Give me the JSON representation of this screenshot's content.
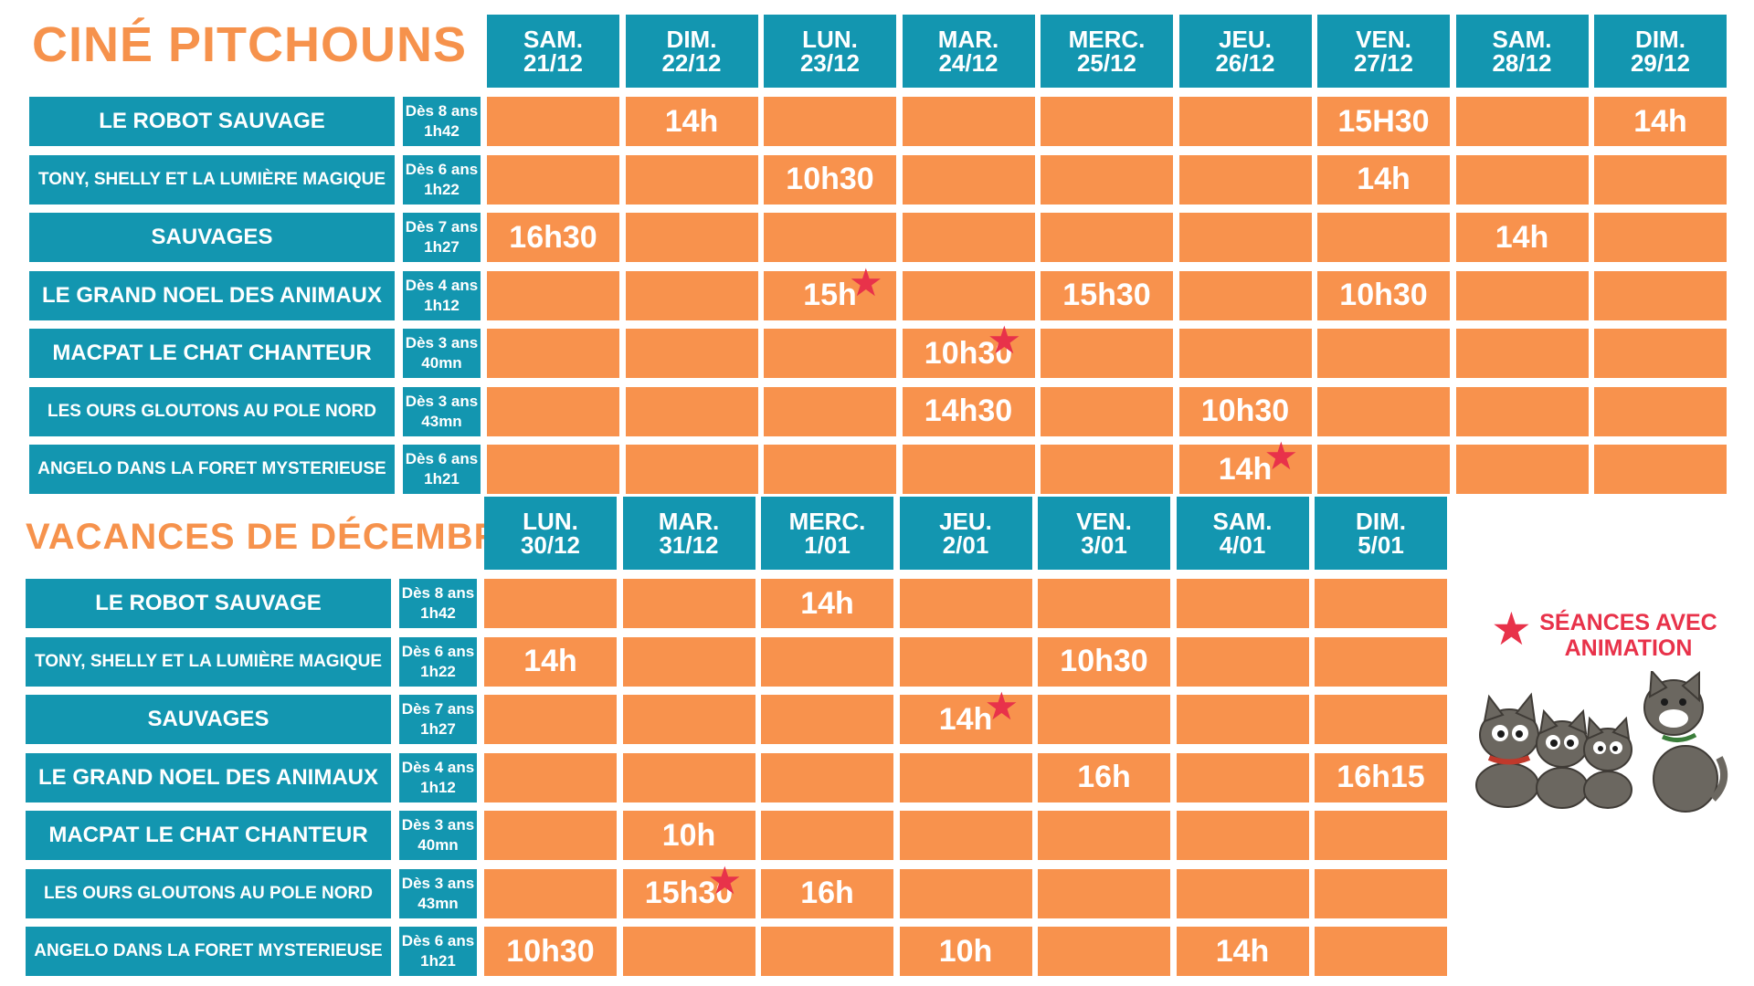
{
  "colors": {
    "orange": "#f8924d",
    "teal": "#1396b0",
    "title_orange": "#f6924c",
    "star_red": "#e8324a"
  },
  "section1": {
    "title": "CINÉ PITCHOUNS",
    "days": [
      {
        "dow": "SAM.",
        "date": "21/12"
      },
      {
        "dow": "DIM.",
        "date": "22/12"
      },
      {
        "dow": "LUN.",
        "date": "23/12"
      },
      {
        "dow": "MAR.",
        "date": "24/12"
      },
      {
        "dow": "MERC.",
        "date": "25/12"
      },
      {
        "dow": "JEU.",
        "date": "26/12"
      },
      {
        "dow": "VEN.",
        "date": "27/12"
      },
      {
        "dow": "SAM.",
        "date": "28/12"
      },
      {
        "dow": "DIM.",
        "date": "29/12"
      }
    ],
    "films": [
      {
        "name": "LE ROBOT SAUVAGE",
        "age": "Dès 8 ans",
        "duration": "1h42",
        "times": [
          "",
          "14h",
          "",
          "",
          "",
          "",
          "15H30",
          "",
          "14h"
        ],
        "stars": [
          false,
          false,
          false,
          false,
          false,
          false,
          false,
          false,
          false
        ]
      },
      {
        "name": "TONY, SHELLY ET LA LUMIÈRE MAGIQUE",
        "age": "Dès 6 ans",
        "duration": "1h22",
        "times": [
          "",
          "",
          "10h30",
          "",
          "",
          "",
          "14h",
          "",
          ""
        ],
        "stars": [
          false,
          false,
          false,
          false,
          false,
          false,
          false,
          false,
          false
        ]
      },
      {
        "name": "SAUVAGES",
        "age": "Dès 7 ans",
        "duration": "1h27",
        "times": [
          "16h30",
          "",
          "",
          "",
          "",
          "",
          "",
          "14h",
          ""
        ],
        "stars": [
          false,
          false,
          false,
          false,
          false,
          false,
          false,
          false,
          false
        ]
      },
      {
        "name": "LE GRAND NOEL DES ANIMAUX",
        "age": "Dès 4 ans",
        "duration": "1h12",
        "times": [
          "",
          "",
          "15h",
          "",
          "15h30",
          "",
          "10h30",
          "",
          ""
        ],
        "stars": [
          false,
          false,
          true,
          false,
          false,
          false,
          false,
          false,
          false
        ]
      },
      {
        "name": "MACPAT LE CHAT CHANTEUR",
        "age": "Dès 3 ans",
        "duration": "40mn",
        "times": [
          "",
          "",
          "",
          "10h30",
          "",
          "",
          "",
          "",
          ""
        ],
        "stars": [
          false,
          false,
          false,
          true,
          false,
          false,
          false,
          false,
          false
        ]
      },
      {
        "name": "LES OURS GLOUTONS AU POLE NORD",
        "age": "Dès 3 ans",
        "duration": "43mn",
        "times": [
          "",
          "",
          "",
          "14h30",
          "",
          "10h30",
          "",
          "",
          ""
        ],
        "stars": [
          false,
          false,
          false,
          false,
          false,
          false,
          false,
          false,
          false
        ]
      },
      {
        "name": "ANGELO DANS LA FORET MYSTERIEUSE",
        "age": "Dès 6 ans",
        "duration": "1h21",
        "times": [
          "",
          "",
          "",
          "",
          "",
          "14h",
          "",
          "",
          ""
        ],
        "stars": [
          false,
          false,
          false,
          false,
          false,
          true,
          false,
          false,
          false
        ]
      }
    ]
  },
  "section2": {
    "title": "VACANCES DE DÉCEMBRE",
    "days": [
      {
        "dow": "LUN.",
        "date": "30/12"
      },
      {
        "dow": "MAR.",
        "date": "31/12"
      },
      {
        "dow": "MERC.",
        "date": "1/01"
      },
      {
        "dow": "JEU.",
        "date": "2/01"
      },
      {
        "dow": "VEN.",
        "date": "3/01"
      },
      {
        "dow": "SAM.",
        "date": "4/01"
      },
      {
        "dow": "DIM.",
        "date": "5/01"
      }
    ],
    "films": [
      {
        "name": "LE ROBOT SAUVAGE",
        "age": "Dès 8 ans",
        "duration": "1h42",
        "times": [
          "",
          "",
          "14h",
          "",
          "",
          "",
          ""
        ],
        "stars": [
          false,
          false,
          false,
          false,
          false,
          false,
          false
        ]
      },
      {
        "name": "TONY, SHELLY ET LA LUMIÈRE MAGIQUE",
        "age": "Dès 6 ans",
        "duration": "1h22",
        "times": [
          "14h",
          "",
          "",
          "",
          "10h30",
          "",
          ""
        ],
        "stars": [
          false,
          false,
          false,
          false,
          false,
          false,
          false
        ]
      },
      {
        "name": "SAUVAGES",
        "age": "Dès 7 ans",
        "duration": "1h27",
        "times": [
          "",
          "",
          "",
          "14h",
          "",
          "",
          ""
        ],
        "stars": [
          false,
          false,
          false,
          true,
          false,
          false,
          false
        ]
      },
      {
        "name": "LE GRAND NOEL DES ANIMAUX",
        "age": "Dès 4 ans",
        "duration": "1h12",
        "times": [
          "",
          "",
          "",
          "",
          "16h",
          "",
          "16h15"
        ],
        "stars": [
          false,
          false,
          false,
          false,
          false,
          false,
          false
        ]
      },
      {
        "name": "MACPAT LE CHAT CHANTEUR",
        "age": "Dès 3 ans",
        "duration": "40mn",
        "times": [
          "",
          "10h",
          "",
          "",
          "",
          "",
          ""
        ],
        "stars": [
          false,
          false,
          false,
          false,
          false,
          false,
          false
        ]
      },
      {
        "name": "LES OURS GLOUTONS AU POLE NORD",
        "age": "Dès 3 ans",
        "duration": "43mn",
        "times": [
          "",
          "15h30",
          "16h",
          "",
          "",
          "",
          ""
        ],
        "stars": [
          false,
          true,
          false,
          false,
          false,
          false,
          false
        ]
      },
      {
        "name": "ANGELO DANS LA FORET MYSTERIEUSE",
        "age": "Dès 6 ans",
        "duration": "1h21",
        "times": [
          "10h30",
          "",
          "",
          "10h",
          "",
          "14h",
          ""
        ],
        "stars": [
          false,
          false,
          false,
          false,
          false,
          false,
          false
        ]
      }
    ]
  },
  "legend": {
    "line1": "SÉANCES AVEC",
    "line2": "ANIMATION",
    "icon": "star-icon"
  },
  "illustration": {
    "icon": "cats-illustration"
  }
}
